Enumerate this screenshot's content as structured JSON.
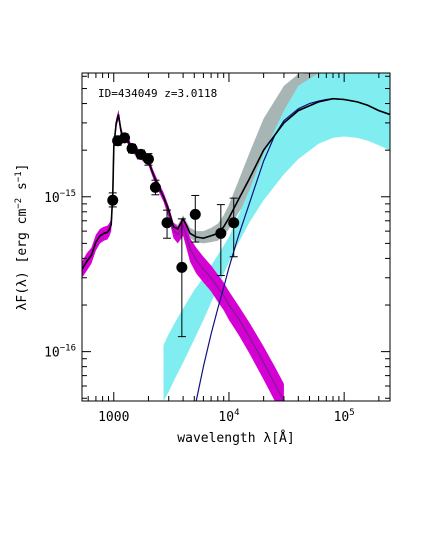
{
  "chart_data": {
    "type": "scatter",
    "annotation": "ID=434049 z=3.0118",
    "xlabel_parts": [
      "wavelength λ[",
      "Å",
      "]"
    ],
    "ylabel_parts": [
      "λF(λ) [erg cm",
      "−2",
      " s",
      "−1",
      "]"
    ],
    "x_scale": "log",
    "y_scale": "log",
    "xlim": [
      530,
      250000
    ],
    "ylim": [
      4.8e-17,
      6.3e-15
    ],
    "x_ticks": [
      {
        "value": 1000,
        "label": "1000"
      },
      {
        "value": 10000,
        "base": "10",
        "exp": "4"
      },
      {
        "value": 100000,
        "base": "10",
        "exp": "5"
      }
    ],
    "y_ticks": [
      {
        "value": 1e-15,
        "base": "10",
        "exp": "−15"
      },
      {
        "value": 1e-16,
        "base": "10",
        "exp": "−16"
      }
    ],
    "colors": {
      "axes": "#000000",
      "total_model": "#000000",
      "stellar_model": "#7b1f8a",
      "stellar_band": "#d400d4",
      "dust_model": "#101080",
      "dust_band": "#80eef0",
      "total_band": "#a8b5b5",
      "data": "#000000"
    },
    "data_points": [
      {
        "x": 980,
        "y": 9.5e-16,
        "yerr": [
          8.6e-16,
          1.06e-15
        ]
      },
      {
        "x": 1080,
        "y": 2.3e-15,
        "yerr": [
          2.15e-15,
          2.45e-15
        ]
      },
      {
        "x": 1240,
        "y": 2.4e-15,
        "yerr": [
          2.25e-15,
          2.55e-15
        ]
      },
      {
        "x": 1440,
        "y": 2.05e-15,
        "yerr": [
          1.92e-15,
          2.18e-15
        ]
      },
      {
        "x": 1720,
        "y": 1.88e-15,
        "yerr": [
          1.76e-15,
          2e-15
        ]
      },
      {
        "x": 2000,
        "y": 1.75e-15,
        "yerr": [
          1.6e-15,
          1.9e-15
        ]
      },
      {
        "x": 2300,
        "y": 1.15e-15,
        "yerr": [
          1.03e-15,
          1.28e-15
        ]
      },
      {
        "x": 2900,
        "y": 6.8e-16,
        "yerr": [
          5.4e-16,
          8.2e-16
        ]
      },
      {
        "x": 3900,
        "y": 3.5e-16,
        "yerr": [
          1.25e-16,
          7.2e-16
        ]
      },
      {
        "x": 5100,
        "y": 7.7e-16,
        "yerr": [
          5.1e-16,
          1.02e-15
        ]
      },
      {
        "x": 8500,
        "y": 5.8e-16,
        "yerr": [
          3.1e-16,
          8.9e-16
        ]
      },
      {
        "x": 11000,
        "y": 6.8e-16,
        "yerr": [
          4.1e-16,
          9.8e-16
        ]
      }
    ],
    "total_model": {
      "x": [
        530,
        580,
        640,
        700,
        760,
        820,
        880,
        920,
        950,
        980,
        1000,
        1050,
        1100,
        1150,
        1200,
        1300,
        1400,
        1500,
        1600,
        1800,
        2000,
        2200,
        2400,
        2700,
        3000,
        3300,
        3600,
        4000,
        4300,
        4600,
        5200,
        6000,
        7000,
        8000,
        9000,
        10000,
        12000,
        15000,
        20000,
        30000,
        40000,
        60000,
        80000,
        100000,
        130000,
        160000,
        200000,
        250000
      ],
      "y": [
        3.4e-16,
        3.8e-16,
        4.2e-16,
        5.1e-16,
        5.6e-16,
        5.8e-16,
        5.9e-16,
        6.2e-16,
        6.6e-16,
        1.05e-15,
        2.1e-15,
        3e-15,
        3.4e-15,
        2.7e-15,
        2.4e-15,
        2.4e-15,
        2.1e-15,
        2e-15,
        1.95e-15,
        1.8e-15,
        1.7e-15,
        1.4e-15,
        1.2e-15,
        1e-15,
        8.2e-16,
        6.4e-16,
        6.2e-16,
        7.2e-16,
        6.5e-16,
        5.8e-16,
        5.5e-16,
        5.4e-16,
        5.6e-16,
        5.8e-16,
        6.4e-16,
        7.3e-16,
        9.5e-16,
        1.3e-15,
        2e-15,
        3e-15,
        3.6e-15,
        4.1e-15,
        4.3e-15,
        4.25e-15,
        4.1e-15,
        3.9e-15,
        3.6e-15,
        3.4e-15
      ],
      "band_low": [
        3.2e-16,
        3.6e-16,
        4e-16,
        4.8e-16,
        5.3e-16,
        5.5e-16,
        5.6e-16,
        5.9e-16,
        6.2e-16,
        1e-15,
        2e-15,
        2.85e-15,
        3.2e-15,
        2.55e-15,
        2.28e-15,
        2.28e-15,
        2e-15,
        1.9e-15,
        1.85e-15,
        1.7e-15,
        1.62e-15,
        1.33e-15,
        1.14e-15,
        9.5e-16,
        7.8e-16,
        6e-16,
        5.8e-16,
        6.8e-16,
        6.1e-16,
        5.4e-16,
        5.1e-16,
        5e-16,
        5.1e-16,
        5.2e-16,
        5.6e-16,
        6.2e-16,
        7.8e-16,
        1e-15,
        1.5e-15,
        2.2e-15,
        2.6e-15,
        2.9e-15,
        3e-15,
        2.95e-15,
        2.8e-15,
        2.6e-15,
        2.35e-15,
        2.2e-15
      ],
      "band_high": [
        3.6e-16,
        4e-16,
        4.4e-16,
        5.4e-16,
        5.9e-16,
        6.1e-16,
        6.2e-16,
        6.5e-16,
        7e-16,
        1.1e-15,
        2.2e-15,
        3.15e-15,
        3.6e-15,
        2.85e-15,
        2.52e-15,
        2.52e-15,
        2.2e-15,
        2.1e-15,
        2.05e-15,
        1.9e-15,
        1.8e-15,
        1.47e-15,
        1.26e-15,
        1.05e-15,
        8.6e-16,
        6.8e-16,
        6.6e-16,
        7.6e-16,
        6.9e-16,
        6.3e-16,
        6e-16,
        6e-16,
        6.3e-16,
        6.7e-16,
        7.6e-16,
        8.9e-16,
        1.25e-15,
        1.9e-15,
        3.2e-15,
        5.2e-15,
        6.2e-15,
        6.3e-15,
        6.3e-15,
        6.3e-15,
        6.3e-15,
        6.3e-15,
        6.3e-15,
        6.3e-15
      ]
    },
    "stellar_model": {
      "x": [
        530,
        580,
        640,
        700,
        760,
        820,
        880,
        920,
        950,
        980,
        1000,
        1050,
        1100,
        1150,
        1200,
        1300,
        1400,
        1500,
        1600,
        1800,
        2000,
        2200,
        2400,
        2700,
        3000,
        3300,
        3600,
        4000,
        4300,
        4600,
        5200,
        6000,
        7000,
        8000,
        9000,
        10000,
        12000,
        15000,
        20000,
        25000,
        30000
      ],
      "y": [
        3.4e-16,
        3.8e-16,
        4.2e-16,
        5.1e-16,
        5.6e-16,
        5.8e-16,
        5.9e-16,
        6.2e-16,
        6.6e-16,
        1.05e-15,
        2.1e-15,
        3e-15,
        3.4e-15,
        2.7e-15,
        2.4e-15,
        2.4e-15,
        2.1e-15,
        2e-15,
        1.95e-15,
        1.8e-15,
        1.7e-15,
        1.4e-15,
        1.2e-15,
        1e-15,
        8e-16,
        6.1e-16,
        5.7e-16,
        6.5e-16,
        5.5e-16,
        4.6e-16,
        3.9e-16,
        3.4e-16,
        3e-16,
        2.6e-16,
        2.3e-16,
        2e-16,
        1.65e-16,
        1.25e-16,
        8.5e-17,
        6.2e-17,
        4.8e-17
      ],
      "band_low": [
        3e-16,
        3.3e-16,
        3.7e-16,
        4.5e-16,
        5e-16,
        5.2e-16,
        5.3e-16,
        5.6e-16,
        6e-16,
        9.6e-16,
        1.95e-15,
        2.8e-15,
        3.15e-15,
        2.5e-15,
        2.25e-15,
        2.25e-15,
        1.97e-15,
        1.88e-15,
        1.83e-15,
        1.69e-15,
        1.6e-15,
        1.31e-15,
        1.12e-15,
        9.3e-16,
        7.3e-16,
        5.4e-16,
        5e-16,
        5.6e-16,
        4.6e-16,
        3.8e-16,
        3.2e-16,
        2.8e-16,
        2.45e-16,
        2.1e-16,
        1.85e-16,
        1.6e-16,
        1.3e-16,
        9.8e-17,
        6.6e-17,
        4.8e-17,
        4.8e-17
      ],
      "band_high": [
        3.8e-16,
        4.3e-16,
        4.7e-16,
        5.7e-16,
        6.2e-16,
        6.4e-16,
        6.5e-16,
        6.8e-16,
        7.2e-16,
        1.14e-15,
        2.25e-15,
        3.2e-15,
        3.65e-15,
        2.9e-15,
        2.55e-15,
        2.55e-15,
        2.23e-15,
        2.12e-15,
        2.07e-15,
        1.91e-15,
        1.8e-15,
        1.49e-15,
        1.28e-15,
        1.07e-15,
        8.7e-16,
        6.8e-16,
        6.4e-16,
        7.4e-16,
        6.4e-16,
        5.4e-16,
        4.7e-16,
        4.1e-16,
        3.6e-16,
        3.15e-16,
        2.8e-16,
        2.45e-16,
        2e-16,
        1.55e-16,
        1.08e-16,
        8e-17,
        6.2e-17
      ]
    },
    "dust_model": {
      "x": [
        5200,
        6000,
        7000,
        8000,
        9000,
        10000,
        12000,
        15000,
        20000,
        25000,
        30000,
        40000,
        50000,
        60000,
        70000,
        80000,
        100000,
        130000,
        160000,
        200000,
        250000
      ],
      "y": [
        4.8e-17,
        8e-17,
        1.3e-16,
        1.9e-16,
        2.6e-16,
        3.5e-16,
        5.5e-16,
        9e-16,
        1.7e-15,
        2.5e-15,
        3.1e-15,
        3.7e-15,
        4e-15,
        4.15e-15,
        4.25e-15,
        4.3e-15,
        4.25e-15,
        4.1e-15,
        3.9e-15,
        3.6e-15,
        3.4e-15
      ],
      "band_low_x": [
        2700,
        3000,
        3500,
        4000,
        5000,
        6000,
        8000,
        10000,
        12000,
        15000,
        20000,
        30000,
        40000,
        60000,
        80000,
        100000,
        130000,
        160000,
        200000,
        250000
      ],
      "band_low": [
        4.8e-17,
        5.5e-17,
        7e-17,
        8.5e-17,
        1.2e-16,
        1.6e-16,
        2.6e-16,
        3.8e-16,
        5e-16,
        6.8e-16,
        9.5e-16,
        1.4e-15,
        1.75e-15,
        2.2e-15,
        2.4e-15,
        2.45e-15,
        2.4e-15,
        2.3e-15,
        2.15e-15,
        2e-15
      ],
      "band_high_x": [
        2700,
        3000,
        3500,
        4000,
        5000,
        6000,
        8000,
        10000,
        12000,
        15000,
        20000,
        30000,
        40000,
        60000,
        80000,
        100000,
        130000,
        160000,
        200000,
        250000
      ],
      "band_high": [
        1.1e-16,
        1.3e-16,
        1.6e-16,
        1.9e-16,
        2.5e-16,
        3e-16,
        4.2e-16,
        5.5e-16,
        7.5e-16,
        1.1e-15,
        1.9e-15,
        3.6e-15,
        5.2e-15,
        6.3e-15,
        6.3e-15,
        6.3e-15,
        6.3e-15,
        6.3e-15,
        6.3e-15,
        6.3e-15
      ]
    }
  }
}
